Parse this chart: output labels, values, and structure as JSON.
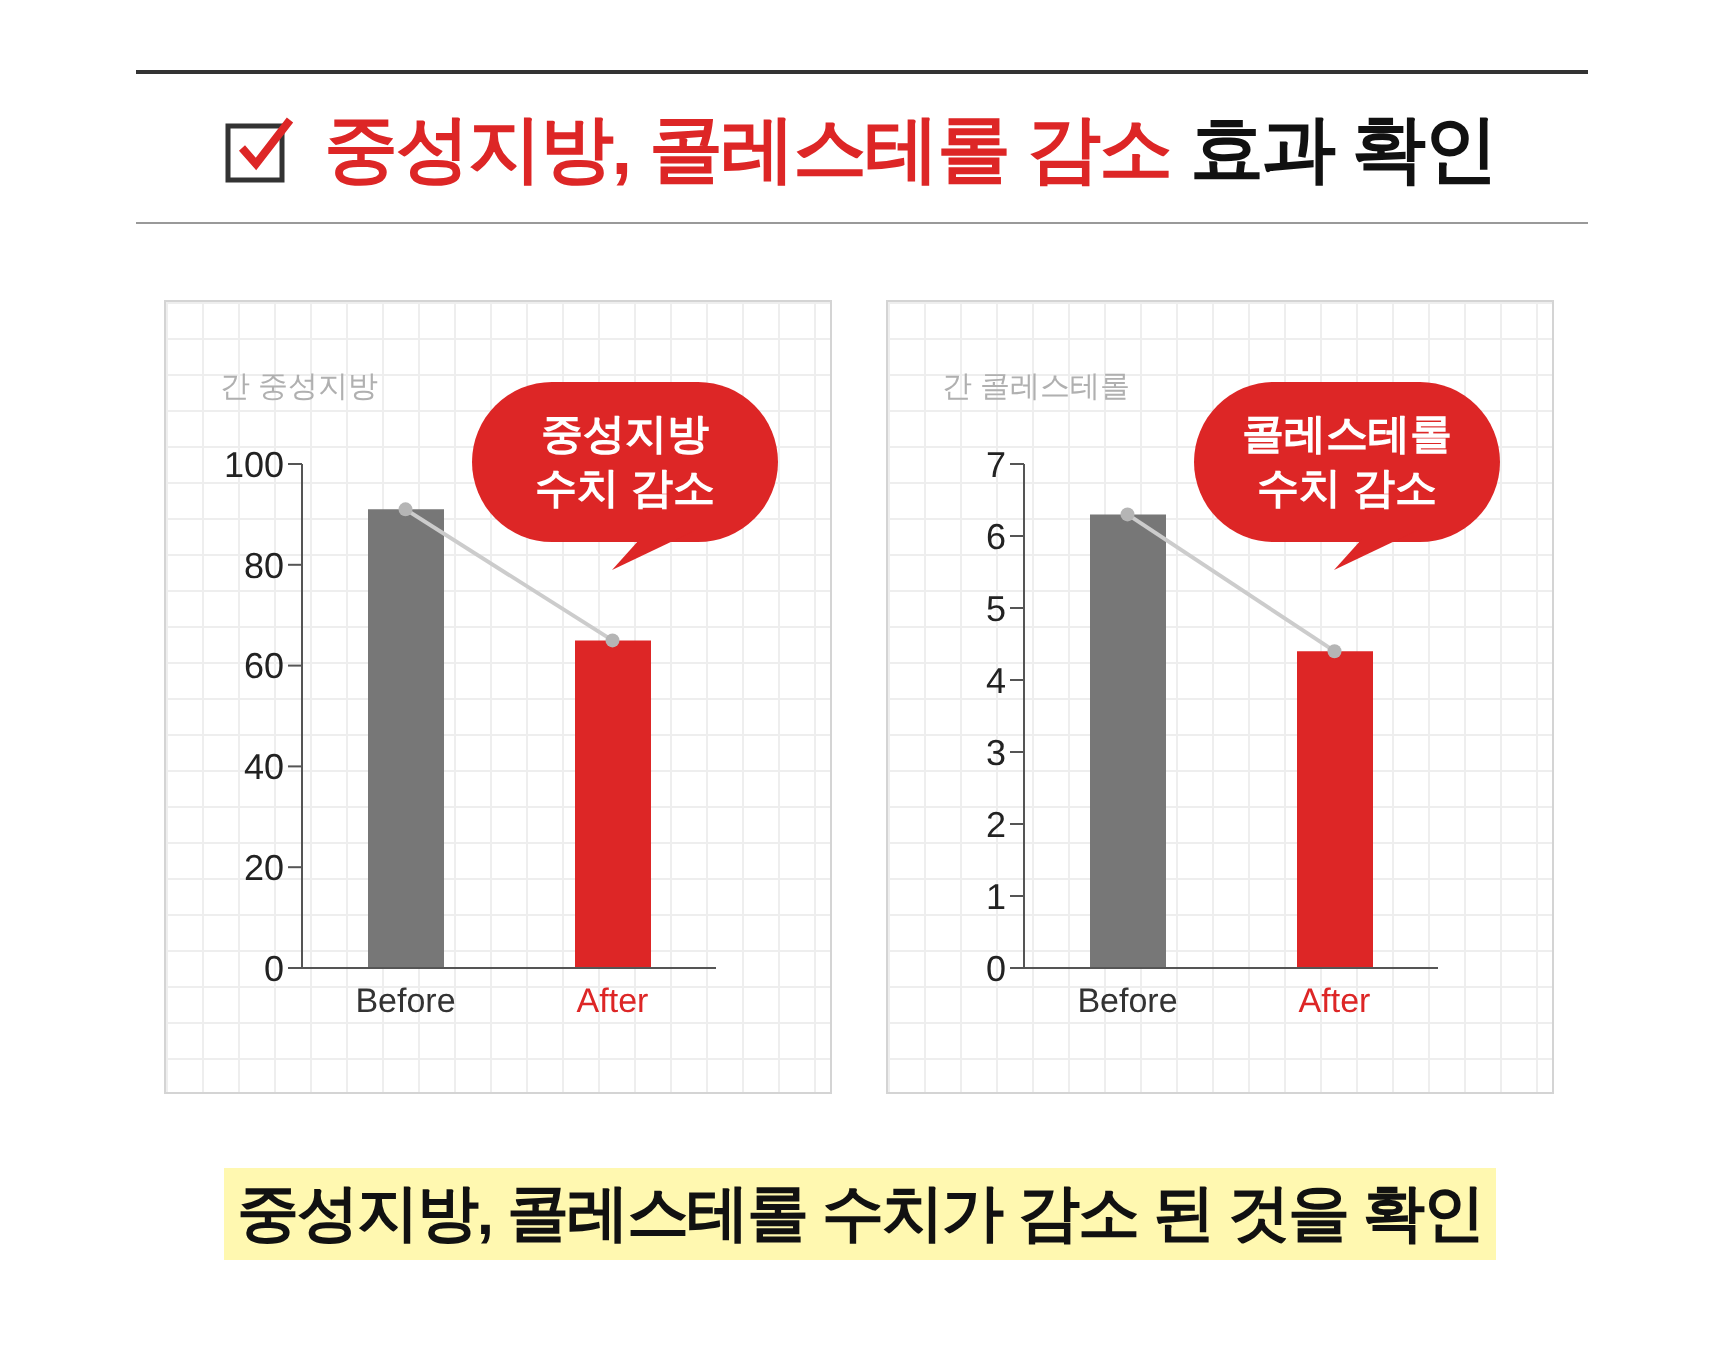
{
  "chart_data": [
    {
      "type": "bar",
      "title": "중성지방, 콜레스테롤 감소 효과 확인",
      "ylabel": "간 중성지방",
      "categories": [
        "Before",
        "After"
      ],
      "series": [
        {
          "colors": [
            "#777777",
            "#dd2626"
          ],
          "values": [
            91,
            65
          ]
        },
        {
          "type": "line",
          "color": "#cccccc",
          "values": [
            91,
            65
          ]
        }
      ],
      "marker": "circle",
      "ylim": [
        0,
        100
      ],
      "yticks": [
        0,
        20,
        40,
        60,
        80,
        100
      ],
      "grid": false,
      "annotations": [
        "중성지방\n수치 감소"
      ]
    },
    {
      "type": "bar",
      "ylabel": "간 콜레스테롤",
      "categories": [
        "Before",
        "After"
      ],
      "series": [
        {
          "colors": [
            "#777777",
            "#dd2626"
          ],
          "values": [
            6.3,
            4.4
          ]
        },
        {
          "type": "line",
          "color": "#cccccc",
          "values": [
            6.3,
            4.4
          ]
        }
      ],
      "marker": "circle",
      "ylim": [
        0,
        7
      ],
      "yticks": [
        0,
        1,
        2,
        3,
        4,
        5,
        6,
        7
      ],
      "grid": false,
      "annotations": [
        "콜레스테롤\n수치 감소",
        "중성지방, 콜레스테롤 수치가 감소 된 것을 확인"
      ]
    }
  ]
}
